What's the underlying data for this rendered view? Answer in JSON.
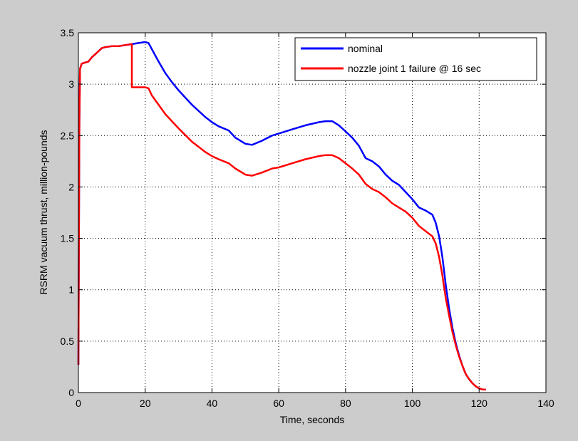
{
  "figure": {
    "background": "#cccccc",
    "axes_background": "#ffffff"
  },
  "chart_data": {
    "type": "line",
    "title": "",
    "xlabel": "Time, seconds",
    "ylabel": "RSRM vacuum thrust, million-pounds",
    "xlim": [
      0,
      140
    ],
    "ylim": [
      0,
      3.5
    ],
    "xticks": [
      0,
      20,
      40,
      60,
      80,
      100,
      120,
      140
    ],
    "yticks": [
      0,
      0.5,
      1,
      1.5,
      2,
      2.5,
      3,
      3.5
    ],
    "xtick_labels": [
      "0",
      "20",
      "40",
      "60",
      "80",
      "100",
      "120",
      "140"
    ],
    "ytick_labels": [
      "0",
      "0.5",
      "1",
      "1.5",
      "2",
      "2.5",
      "3",
      "3.5"
    ],
    "grid": true,
    "grid_style": "dotted",
    "legend": {
      "position": "top-right"
    },
    "series": [
      {
        "name": "nominal",
        "color": "#0000ff",
        "x": [
          0,
          0.3,
          0.5,
          1,
          2,
          3,
          4,
          5,
          6,
          7,
          8,
          10,
          12,
          14,
          16,
          18,
          20,
          21,
          22,
          24,
          26,
          28,
          30,
          34,
          38,
          40,
          42,
          45,
          47,
          50,
          52,
          55,
          58,
          60,
          64,
          68,
          72,
          74,
          76,
          78,
          80,
          82,
          84,
          86,
          88,
          90,
          92,
          94,
          96,
          98,
          100,
          102,
          104,
          106,
          107,
          108,
          109,
          110,
          111,
          112,
          113,
          114,
          115,
          116,
          117,
          118,
          119,
          120,
          121,
          122
        ],
        "y": [
          0.27,
          2.65,
          3.15,
          3.2,
          3.21,
          3.22,
          3.26,
          3.29,
          3.32,
          3.35,
          3.36,
          3.37,
          3.37,
          3.38,
          3.39,
          3.4,
          3.41,
          3.4,
          3.34,
          3.22,
          3.11,
          3.02,
          2.94,
          2.8,
          2.68,
          2.63,
          2.59,
          2.55,
          2.48,
          2.42,
          2.41,
          2.45,
          2.5,
          2.52,
          2.56,
          2.6,
          2.63,
          2.64,
          2.64,
          2.6,
          2.54,
          2.48,
          2.4,
          2.28,
          2.25,
          2.2,
          2.12,
          2.06,
          2.02,
          1.95,
          1.88,
          1.8,
          1.77,
          1.73,
          1.65,
          1.52,
          1.32,
          1.05,
          0.82,
          0.63,
          0.48,
          0.36,
          0.26,
          0.18,
          0.13,
          0.09,
          0.06,
          0.04,
          0.03,
          0.03
        ]
      },
      {
        "name": "nozzle joint 1 failure @ 16 sec",
        "color": "#ff0000",
        "x": [
          0,
          0.3,
          0.5,
          1,
          2,
          3,
          4,
          5,
          6,
          7,
          8,
          10,
          12,
          14,
          16,
          16,
          18,
          20,
          21,
          22,
          24,
          26,
          28,
          30,
          34,
          38,
          40,
          42,
          45,
          47,
          50,
          52,
          55,
          58,
          60,
          64,
          68,
          72,
          74,
          76,
          78,
          80,
          82,
          84,
          86,
          88,
          90,
          92,
          94,
          96,
          98,
          100,
          102,
          104,
          106,
          107,
          108,
          109,
          110,
          111,
          112,
          113,
          114,
          115,
          116,
          117,
          118,
          119,
          120,
          121,
          122
        ],
        "y": [
          0.27,
          2.65,
          3.15,
          3.2,
          3.21,
          3.22,
          3.26,
          3.29,
          3.32,
          3.35,
          3.36,
          3.37,
          3.37,
          3.38,
          3.39,
          2.97,
          2.97,
          2.97,
          2.96,
          2.89,
          2.8,
          2.71,
          2.64,
          2.57,
          2.44,
          2.34,
          2.3,
          2.27,
          2.23,
          2.18,
          2.12,
          2.11,
          2.14,
          2.18,
          2.19,
          2.23,
          2.27,
          2.3,
          2.31,
          2.31,
          2.28,
          2.23,
          2.18,
          2.12,
          2.03,
          1.98,
          1.95,
          1.9,
          1.84,
          1.8,
          1.76,
          1.7,
          1.62,
          1.57,
          1.52,
          1.45,
          1.32,
          1.14,
          0.92,
          0.75,
          0.59,
          0.46,
          0.35,
          0.26,
          0.18,
          0.13,
          0.09,
          0.06,
          0.04,
          0.03,
          0.03
        ]
      }
    ]
  }
}
